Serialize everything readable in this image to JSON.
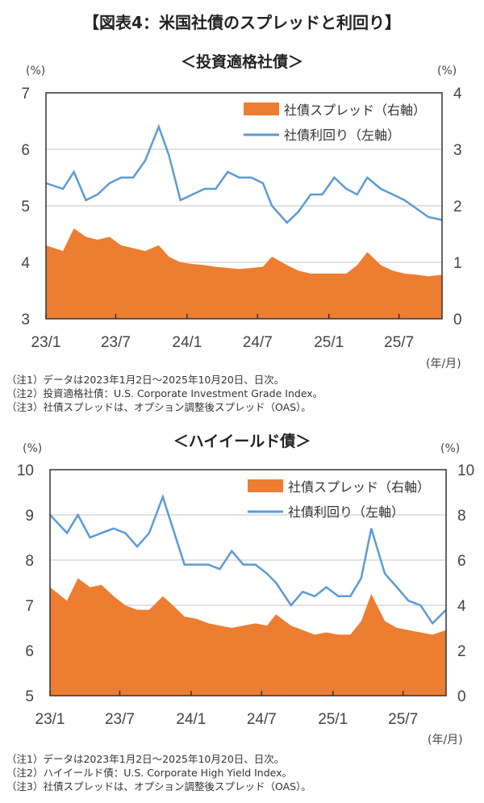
{
  "title": "【図表4：米国社債のスプレッドと利回り】",
  "colors": {
    "spread": "#ED7D31",
    "yield": "#5B9BD5",
    "grid": "#D9D9D9"
  },
  "chart_data": [
    {
      "type": "area+line",
      "subtitle": "＜投資適格社債＞",
      "left_unit": "(%)",
      "right_unit": "(%)",
      "x_unit": "(年/月)",
      "x_ticks": [
        "23/1",
        "23/7",
        "24/1",
        "24/7",
        "25/1",
        "25/7"
      ],
      "x_tick_dates": [
        "2023-01-01",
        "2023-07-01",
        "2024-01-01",
        "2024-07-01",
        "2025-01-01",
        "2025-07-01"
      ],
      "xlim": [
        "2023-01-02",
        "2025-10-20"
      ],
      "left_ylim": [
        3,
        7
      ],
      "left_ticks": [
        3,
        4,
        5,
        6,
        7
      ],
      "right_ylim": [
        0,
        4
      ],
      "right_ticks": [
        0,
        1,
        2,
        3,
        4
      ],
      "grid": true,
      "legend": "top-right",
      "x": [
        "2023-01-02",
        "2023-02-15",
        "2023-03-15",
        "2023-04-15",
        "2023-05-15",
        "2023-06-15",
        "2023-07-15",
        "2023-08-15",
        "2023-09-15",
        "2023-10-20",
        "2023-11-15",
        "2023-12-15",
        "2024-01-15",
        "2024-02-15",
        "2024-03-15",
        "2024-04-15",
        "2024-05-15",
        "2024-06-15",
        "2024-07-15",
        "2024-08-07",
        "2024-09-15",
        "2024-10-15",
        "2024-11-15",
        "2024-12-15",
        "2025-01-15",
        "2025-02-15",
        "2025-03-15",
        "2025-04-10",
        "2025-05-15",
        "2025-06-15",
        "2025-07-15",
        "2025-08-15",
        "2025-09-15",
        "2025-10-20"
      ],
      "series": [
        {
          "name": "社債スプレッド（右軸）",
          "axis": "right",
          "kind": "area",
          "values": [
            1.3,
            1.2,
            1.6,
            1.45,
            1.4,
            1.45,
            1.3,
            1.25,
            1.2,
            1.3,
            1.1,
            1.0,
            0.97,
            0.95,
            0.92,
            0.9,
            0.88,
            0.9,
            0.92,
            1.1,
            0.95,
            0.85,
            0.8,
            0.8,
            0.8,
            0.8,
            0.95,
            1.18,
            0.95,
            0.85,
            0.8,
            0.78,
            0.75,
            0.78
          ]
        },
        {
          "name": "社債利回り（左軸）",
          "axis": "left",
          "kind": "line",
          "values": [
            5.4,
            5.3,
            5.6,
            5.1,
            5.2,
            5.4,
            5.5,
            5.5,
            5.8,
            6.4,
            5.9,
            5.1,
            5.2,
            5.3,
            5.3,
            5.6,
            5.5,
            5.5,
            5.4,
            5.0,
            4.7,
            4.9,
            5.2,
            5.2,
            5.5,
            5.3,
            5.2,
            5.5,
            5.3,
            5.2,
            5.1,
            4.95,
            4.8,
            4.75
          ]
        }
      ],
      "notes": [
        "（注1）データは2023年1月2日～2025年10月20日、日次。",
        "（注2）投資適格社債：U.S. Corporate Investment Grade Index。",
        "（注3）社債スプレッドは、オプション調整後スプレッド（OAS）。"
      ]
    },
    {
      "type": "area+line",
      "subtitle": "＜ハイイールド債＞",
      "left_unit": "(%)",
      "right_unit": "(%)",
      "x_unit": "(年/月)",
      "x_ticks": [
        "23/1",
        "23/7",
        "24/1",
        "24/7",
        "25/1",
        "25/7"
      ],
      "x_tick_dates": [
        "2023-01-01",
        "2023-07-01",
        "2024-01-01",
        "2024-07-01",
        "2025-01-01",
        "2025-07-01"
      ],
      "xlim": [
        "2023-01-02",
        "2025-10-20"
      ],
      "left_ylim": [
        5,
        10
      ],
      "left_ticks": [
        5,
        6,
        7,
        8,
        9,
        10
      ],
      "right_ylim": [
        0,
        10
      ],
      "right_ticks": [
        0,
        2,
        4,
        6,
        8,
        10
      ],
      "grid": true,
      "legend": "top-right",
      "x": [
        "2023-01-02",
        "2023-02-15",
        "2023-03-15",
        "2023-04-15",
        "2023-05-15",
        "2023-06-15",
        "2023-07-15",
        "2023-08-15",
        "2023-09-15",
        "2023-10-20",
        "2023-11-15",
        "2023-12-15",
        "2024-01-15",
        "2024-02-15",
        "2024-03-15",
        "2024-04-15",
        "2024-05-15",
        "2024-06-15",
        "2024-07-15",
        "2024-08-07",
        "2024-09-15",
        "2024-10-15",
        "2024-11-15",
        "2024-12-15",
        "2025-01-15",
        "2025-02-15",
        "2025-03-15",
        "2025-04-10",
        "2025-05-15",
        "2025-06-15",
        "2025-07-15",
        "2025-08-15",
        "2025-09-15",
        "2025-10-20"
      ],
      "series": [
        {
          "name": "社債スプレッド（右軸）",
          "axis": "right",
          "kind": "area",
          "values": [
            4.8,
            4.2,
            5.2,
            4.8,
            4.9,
            4.4,
            4.0,
            3.8,
            3.8,
            4.4,
            4.0,
            3.5,
            3.4,
            3.2,
            3.1,
            3.0,
            3.1,
            3.2,
            3.1,
            3.6,
            3.1,
            2.9,
            2.7,
            2.8,
            2.7,
            2.7,
            3.3,
            4.5,
            3.3,
            3.0,
            2.9,
            2.8,
            2.7,
            2.9
          ]
        },
        {
          "name": "社債利回り（左軸）",
          "axis": "left",
          "kind": "line",
          "values": [
            9.0,
            8.6,
            9.0,
            8.5,
            8.6,
            8.7,
            8.6,
            8.3,
            8.6,
            9.4,
            8.7,
            7.9,
            7.9,
            7.9,
            7.8,
            8.2,
            7.9,
            7.9,
            7.7,
            7.5,
            7.0,
            7.3,
            7.2,
            7.4,
            7.2,
            7.2,
            7.6,
            8.7,
            7.7,
            7.4,
            7.1,
            7.0,
            6.6,
            6.9
          ]
        }
      ],
      "notes": [
        "（注1）データは2023年1月2日～2025年10月20日、日次。",
        "（注2）ハイイールド債：U.S. Corporate High Yield Index。",
        "（注3）社債スプレッドは、オプション調整後スプレッド（OAS）。"
      ]
    }
  ]
}
